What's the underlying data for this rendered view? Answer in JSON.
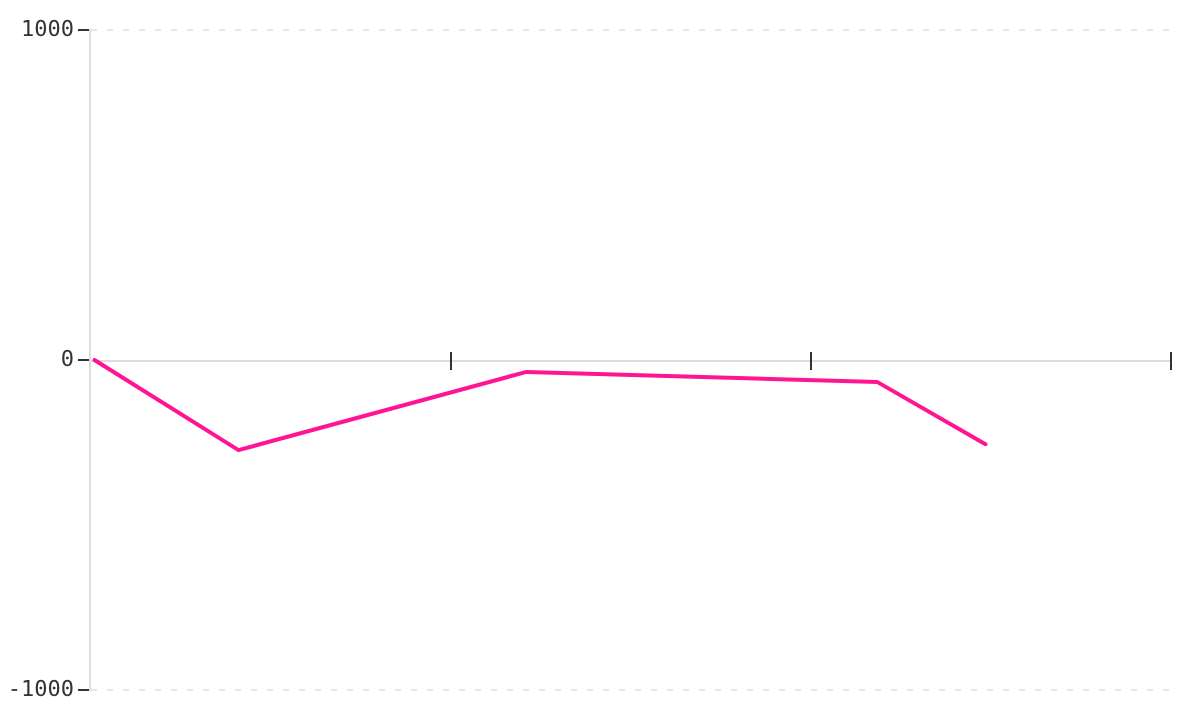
{
  "chart_data": {
    "type": "line",
    "categories": [
      null,
      null,
      null,
      null,
      null,
      null,
      null,
      null,
      null,
      null,
      null,
      null,
      null,
      null,
      null,
      null,
      null,
      null,
      null,
      null,
      null,
      null,
      null,
      null,
      null,
      null,
      null,
      null,
      null,
      null,
      null,
      null,
      null,
      null,
      null,
      null,
      null,
      null,
      null,
      null,
      null,
      null,
      null,
      null,
      null,
      null,
      null,
      null,
      null,
      null,
      null,
      null,
      null,
      null,
      null,
      null,
      null,
      null,
      null,
      null,
      null,
      null,
      null,
      null,
      null,
      null,
      null,
      null,
      null,
      null,
      null,
      null,
      null,
      null,
      null,
      null,
      null,
      null,
      null,
      null,
      null,
      null,
      null,
      null,
      null,
      null,
      null,
      null,
      null,
      null,
      null,
      null,
      null,
      null,
      null,
      null,
      null,
      null,
      null,
      null,
      null,
      null,
      null,
      null,
      null,
      null,
      null,
      null,
      null,
      null,
      null,
      null,
      null,
      null,
      null,
      null,
      null,
      null,
      null,
      null
    ],
    "ylim": [
      -1000,
      1000
    ],
    "yticks": [
      -1000,
      0,
      1000
    ],
    "tick_labels": "y",
    "grid": "y",
    "marker": "none",
    "line_style": "solid",
    "legend": false,
    "series": [
      {
        "color": "#ff1493",
        "values": [
          0,
          null,
          null,
          null,
          null,
          null,
          null,
          null,
          null,
          null,
          null,
          null,
          null,
          null,
          null,
          null,
          -273,
          null,
          null,
          null,
          null,
          null,
          null,
          null,
          null,
          null,
          null,
          null,
          null,
          null,
          null,
          null,
          null,
          null,
          null,
          null,
          null,
          null,
          null,
          null,
          null,
          null,
          null,
          null,
          null,
          null,
          null,
          null,
          -36,
          null,
          null,
          null,
          null,
          null,
          null,
          null,
          null,
          null,
          null,
          null,
          null,
          null,
          null,
          null,
          null,
          null,
          null,
          null,
          null,
          null,
          null,
          null,
          null,
          null,
          null,
          null,
          null,
          null,
          null,
          null,
          null,
          null,
          null,
          null,
          null,
          null,
          null,
          -67,
          null,
          null,
          null,
          null,
          null,
          null,
          null,
          null,
          null,
          null,
          null,
          -255,
          null,
          null,
          null,
          null,
          null,
          null,
          null,
          null,
          null,
          null,
          null,
          null,
          null,
          null,
          null,
          null,
          null,
          null,
          null,
          null
        ]
      }
    ]
  }
}
